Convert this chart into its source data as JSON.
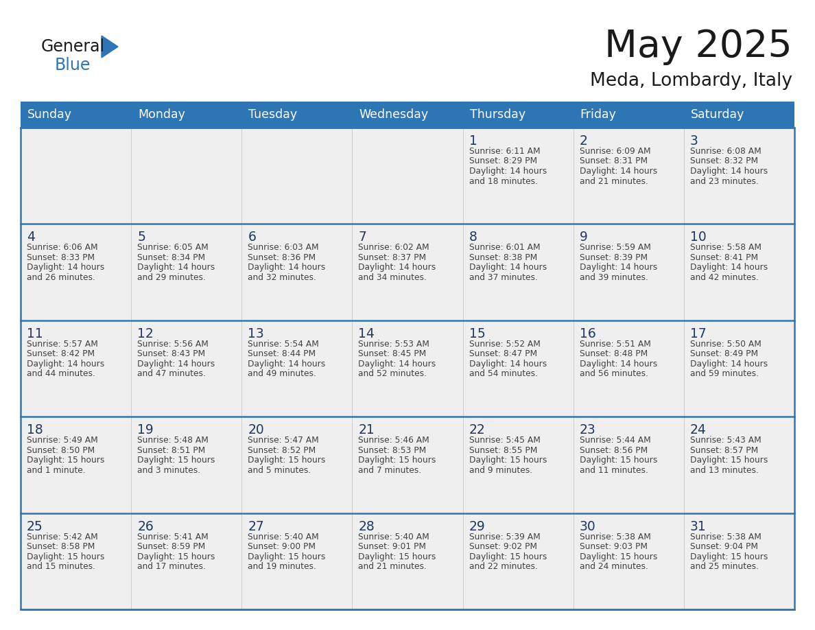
{
  "title": "May 2025",
  "subtitle": "Meda, Lombardy, Italy",
  "header_bg": "#2E75B6",
  "header_text": "#FFFFFF",
  "cell_bg": "#EFEFEF",
  "cell_text_color": "#404040",
  "day_number_color": "#1F3864",
  "border_color": "#2E75B6",
  "days_of_week": [
    "Sunday",
    "Monday",
    "Tuesday",
    "Wednesday",
    "Thursday",
    "Friday",
    "Saturday"
  ],
  "logo_black": "#1a1a1a",
  "logo_blue": "#2E75B6",
  "weeks": [
    [
      {
        "day": "",
        "sunrise": "",
        "sunset": "",
        "daylight": ""
      },
      {
        "day": "",
        "sunrise": "",
        "sunset": "",
        "daylight": ""
      },
      {
        "day": "",
        "sunrise": "",
        "sunset": "",
        "daylight": ""
      },
      {
        "day": "",
        "sunrise": "",
        "sunset": "",
        "daylight": ""
      },
      {
        "day": "1",
        "sunrise": "6:11 AM",
        "sunset": "8:29 PM",
        "daylight": "14 hours\nand 18 minutes."
      },
      {
        "day": "2",
        "sunrise": "6:09 AM",
        "sunset": "8:31 PM",
        "daylight": "14 hours\nand 21 minutes."
      },
      {
        "day": "3",
        "sunrise": "6:08 AM",
        "sunset": "8:32 PM",
        "daylight": "14 hours\nand 23 minutes."
      }
    ],
    [
      {
        "day": "4",
        "sunrise": "6:06 AM",
        "sunset": "8:33 PM",
        "daylight": "14 hours\nand 26 minutes."
      },
      {
        "day": "5",
        "sunrise": "6:05 AM",
        "sunset": "8:34 PM",
        "daylight": "14 hours\nand 29 minutes."
      },
      {
        "day": "6",
        "sunrise": "6:03 AM",
        "sunset": "8:36 PM",
        "daylight": "14 hours\nand 32 minutes."
      },
      {
        "day": "7",
        "sunrise": "6:02 AM",
        "sunset": "8:37 PM",
        "daylight": "14 hours\nand 34 minutes."
      },
      {
        "day": "8",
        "sunrise": "6:01 AM",
        "sunset": "8:38 PM",
        "daylight": "14 hours\nand 37 minutes."
      },
      {
        "day": "9",
        "sunrise": "5:59 AM",
        "sunset": "8:39 PM",
        "daylight": "14 hours\nand 39 minutes."
      },
      {
        "day": "10",
        "sunrise": "5:58 AM",
        "sunset": "8:41 PM",
        "daylight": "14 hours\nand 42 minutes."
      }
    ],
    [
      {
        "day": "11",
        "sunrise": "5:57 AM",
        "sunset": "8:42 PM",
        "daylight": "14 hours\nand 44 minutes."
      },
      {
        "day": "12",
        "sunrise": "5:56 AM",
        "sunset": "8:43 PM",
        "daylight": "14 hours\nand 47 minutes."
      },
      {
        "day": "13",
        "sunrise": "5:54 AM",
        "sunset": "8:44 PM",
        "daylight": "14 hours\nand 49 minutes."
      },
      {
        "day": "14",
        "sunrise": "5:53 AM",
        "sunset": "8:45 PM",
        "daylight": "14 hours\nand 52 minutes."
      },
      {
        "day": "15",
        "sunrise": "5:52 AM",
        "sunset": "8:47 PM",
        "daylight": "14 hours\nand 54 minutes."
      },
      {
        "day": "16",
        "sunrise": "5:51 AM",
        "sunset": "8:48 PM",
        "daylight": "14 hours\nand 56 minutes."
      },
      {
        "day": "17",
        "sunrise": "5:50 AM",
        "sunset": "8:49 PM",
        "daylight": "14 hours\nand 59 minutes."
      }
    ],
    [
      {
        "day": "18",
        "sunrise": "5:49 AM",
        "sunset": "8:50 PM",
        "daylight": "15 hours\nand 1 minute."
      },
      {
        "day": "19",
        "sunrise": "5:48 AM",
        "sunset": "8:51 PM",
        "daylight": "15 hours\nand 3 minutes."
      },
      {
        "day": "20",
        "sunrise": "5:47 AM",
        "sunset": "8:52 PM",
        "daylight": "15 hours\nand 5 minutes."
      },
      {
        "day": "21",
        "sunrise": "5:46 AM",
        "sunset": "8:53 PM",
        "daylight": "15 hours\nand 7 minutes."
      },
      {
        "day": "22",
        "sunrise": "5:45 AM",
        "sunset": "8:55 PM",
        "daylight": "15 hours\nand 9 minutes."
      },
      {
        "day": "23",
        "sunrise": "5:44 AM",
        "sunset": "8:56 PM",
        "daylight": "15 hours\nand 11 minutes."
      },
      {
        "day": "24",
        "sunrise": "5:43 AM",
        "sunset": "8:57 PM",
        "daylight": "15 hours\nand 13 minutes."
      }
    ],
    [
      {
        "day": "25",
        "sunrise": "5:42 AM",
        "sunset": "8:58 PM",
        "daylight": "15 hours\nand 15 minutes."
      },
      {
        "day": "26",
        "sunrise": "5:41 AM",
        "sunset": "8:59 PM",
        "daylight": "15 hours\nand 17 minutes."
      },
      {
        "day": "27",
        "sunrise": "5:40 AM",
        "sunset": "9:00 PM",
        "daylight": "15 hours\nand 19 minutes."
      },
      {
        "day": "28",
        "sunrise": "5:40 AM",
        "sunset": "9:01 PM",
        "daylight": "15 hours\nand 21 minutes."
      },
      {
        "day": "29",
        "sunrise": "5:39 AM",
        "sunset": "9:02 PM",
        "daylight": "15 hours\nand 22 minutes."
      },
      {
        "day": "30",
        "sunrise": "5:38 AM",
        "sunset": "9:03 PM",
        "daylight": "15 hours\nand 24 minutes."
      },
      {
        "day": "31",
        "sunrise": "5:38 AM",
        "sunset": "9:04 PM",
        "daylight": "15 hours\nand 25 minutes."
      }
    ]
  ]
}
